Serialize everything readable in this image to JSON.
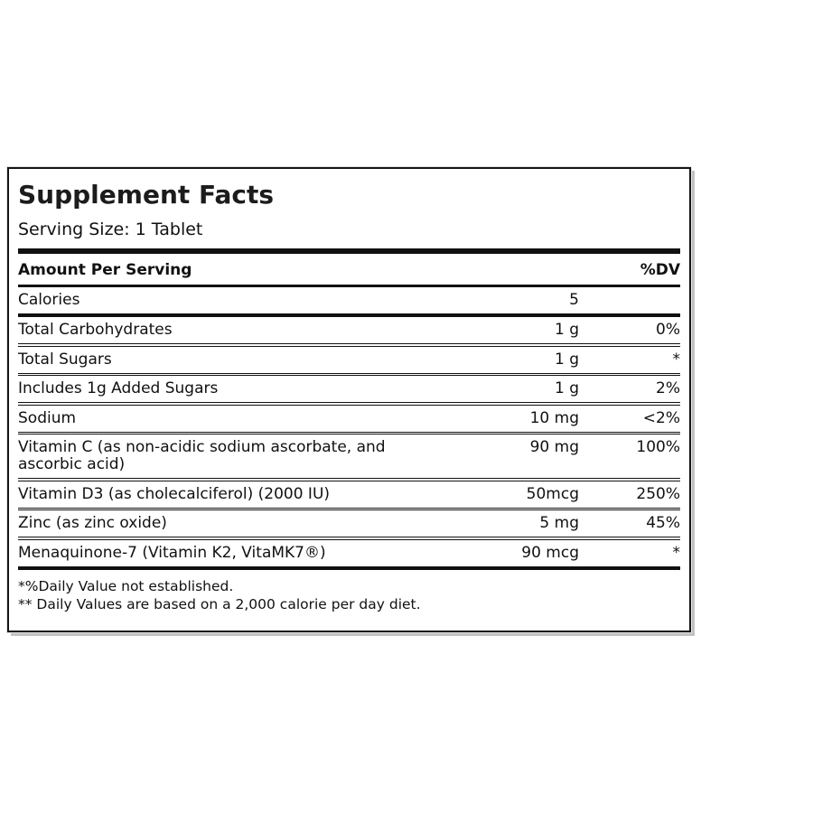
{
  "label": {
    "title": "Supplement Facts",
    "serving_size": "Serving Size: 1 Tablet",
    "header": {
      "amount_per_serving": "Amount Per Serving",
      "dv": "%DV"
    },
    "rows": [
      {
        "name": "Calories",
        "amount": "5",
        "dv": ""
      },
      {
        "name": "Total Carbohydrates",
        "amount": "1 g",
        "dv": "0%"
      },
      {
        "name": "Total Sugars",
        "amount": "1 g",
        "dv": "*"
      },
      {
        "name": "Includes 1g Added Sugars",
        "amount": "1 g",
        "dv": "2%"
      },
      {
        "name": "Sodium",
        "amount": "10 mg",
        "dv": "<2%"
      },
      {
        "name": "Vitamin C (as non-acidic sodium ascorbate, and\nascorbic acid)",
        "amount": "90 mg",
        "dv": "100%"
      },
      {
        "name": "Vitamin D3 (as cholecalciferol) (2000 IU)",
        "amount": "50mcg",
        "dv": "250%"
      },
      {
        "name": "Zinc (as zinc oxide)",
        "amount": "5 mg",
        "dv": "45%"
      },
      {
        "name": "Menaquinone-7 (Vitamin K2, VitaMK7®)",
        "amount": "90 mcg",
        "dv": "*"
      }
    ],
    "footnotes": [
      "*%Daily Value not established.",
      "** Daily Values are based on a 2,000 calorie per day diet."
    ],
    "colors": {
      "text": "#111111",
      "rule": "#111111",
      "background": "#ffffff",
      "shadow": "#c2c2c2"
    }
  }
}
